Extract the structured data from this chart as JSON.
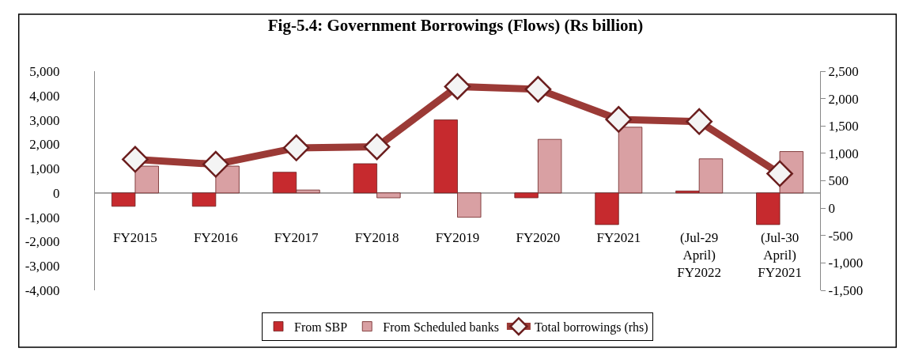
{
  "chart_data": {
    "type": "bar",
    "title": "Fig-5.4: Government Borrowings (Flows) (Rs billion)",
    "categories": [
      "FY2015",
      "FY2016",
      "FY2017",
      "FY2018",
      "FY2019",
      "FY2020",
      "FY2021",
      "(Jul-29 April) FY2022",
      "(Jul-30 April) FY2021"
    ],
    "series": [
      {
        "name": "From SBP",
        "color": "#c62a2e",
        "values": [
          -550,
          -550,
          850,
          1200,
          3000,
          -200,
          -1300,
          80,
          -1300
        ]
      },
      {
        "name": "From Scheduled banks",
        "color": "#d9a0a3",
        "values": [
          1100,
          1100,
          120,
          -200,
          -1000,
          2200,
          2700,
          1400,
          1700
        ]
      },
      {
        "name": "Total borrowings (rhs)",
        "type": "line",
        "axis": "y2",
        "color": "#9b3a36",
        "marker": "diamond",
        "values": [
          890,
          800,
          1100,
          1120,
          2220,
          2170,
          1620,
          1580,
          630
        ]
      }
    ],
    "ylim": [
      -4000,
      5000
    ],
    "yticks": [
      {
        "value": -4000,
        "label": "-4,000"
      },
      {
        "value": -3000,
        "label": "-3,000"
      },
      {
        "value": -2000,
        "label": "-2,000"
      },
      {
        "value": -1000,
        "label": "-1,000"
      },
      0,
      {
        "value": 1000,
        "label": "1,000"
      },
      {
        "value": 2000,
        "label": "2,000"
      },
      {
        "value": 3000,
        "label": "3,000"
      },
      {
        "value": 4000,
        "label": "4,000"
      },
      {
        "value": 5000,
        "label": "5,000"
      }
    ],
    "y2lim": [
      -1500,
      2500
    ],
    "y2ticks": [
      {
        "value": -1500,
        "label": "-1,500"
      },
      {
        "value": -1000,
        "label": "-1,000"
      },
      {
        "value": -500,
        "label": "-500"
      },
      0,
      500,
      {
        "value": 1000,
        "label": "1,000"
      },
      {
        "value": 1500,
        "label": "1,500"
      },
      {
        "value": 2000,
        "label": "2,000"
      },
      {
        "value": 2500,
        "label": "2,500"
      }
    ],
    "legend": "bottom"
  }
}
